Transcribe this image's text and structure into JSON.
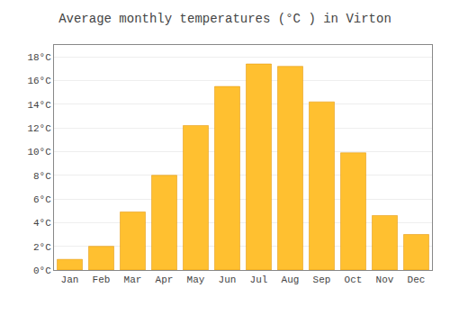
{
  "chart_data": {
    "type": "bar",
    "title": "Average monthly temperatures (°C ) in Virton",
    "categories": [
      "Jan",
      "Feb",
      "Mar",
      "Apr",
      "May",
      "Jun",
      "Jul",
      "Aug",
      "Sep",
      "Oct",
      "Nov",
      "Dec"
    ],
    "values": [
      0.9,
      2.0,
      4.9,
      8.0,
      12.2,
      15.5,
      17.4,
      17.2,
      14.2,
      9.9,
      4.6,
      3.0
    ],
    "color": "#FFC030",
    "ylim": [
      0,
      19
    ],
    "yticks": [
      {
        "value": 0,
        "label": "0°C"
      },
      {
        "value": 2,
        "label": "2°C"
      },
      {
        "value": 4,
        "label": "4°C"
      },
      {
        "value": 6,
        "label": "6°C"
      },
      {
        "value": 8,
        "label": "8°C"
      },
      {
        "value": 10,
        "label": "10°C"
      },
      {
        "value": 12,
        "label": "12°C"
      },
      {
        "value": 14,
        "label": "14°C"
      },
      {
        "value": 16,
        "label": "16°C"
      },
      {
        "value": 18,
        "label": "18°C"
      }
    ],
    "grid": true
  }
}
